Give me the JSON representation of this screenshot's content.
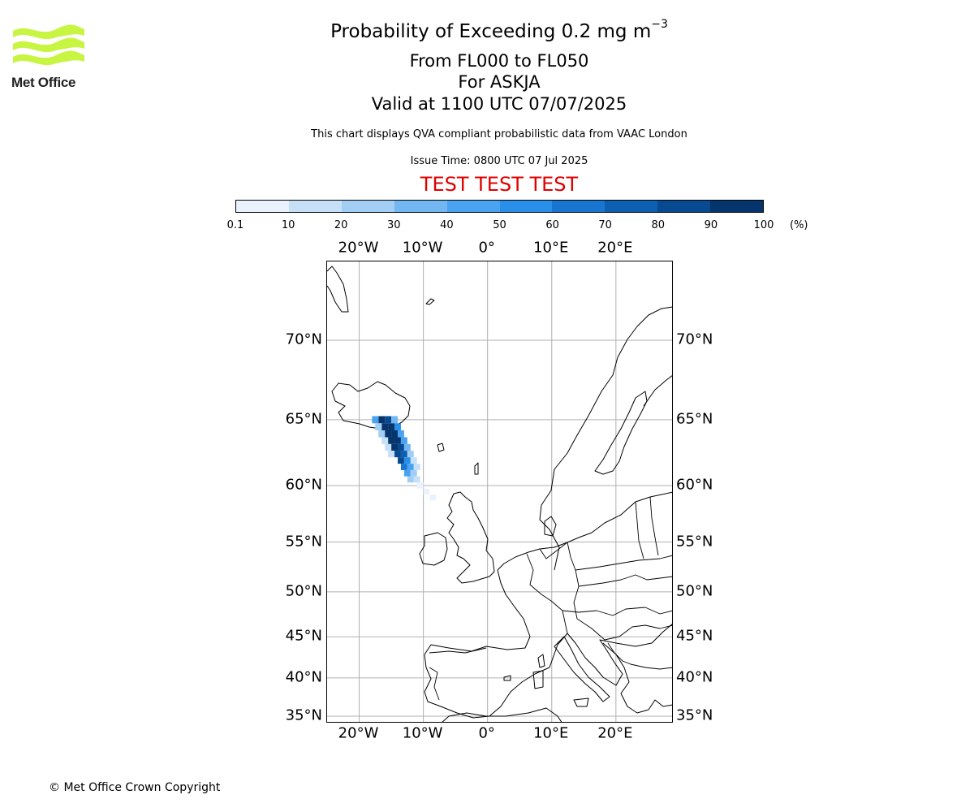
{
  "logo": {
    "text": "Met Office",
    "icon": "met-office-wave-logo",
    "color": "#c8f542"
  },
  "titles": {
    "line1_main": "Probability of Exceeding 0.2 mg m",
    "line1_sup": "−3",
    "line2": "From FL000 to FL050",
    "line3": "For ASKJA",
    "line4": "Valid at 1100 UTC 07/07/2025",
    "description": "This chart displays QVA compliant probabilistic data from VAAC London",
    "issue_time": "Issue Time: 0800 UTC 07 Jul 2025",
    "test_banner": "TEST TEST TEST"
  },
  "colorbar": {
    "labels": [
      "0.1",
      "10",
      "20",
      "30",
      "40",
      "50",
      "60",
      "70",
      "80",
      "90",
      "100"
    ],
    "unit": "(%)",
    "colors": [
      "#eaf3fd",
      "#c6e0f8",
      "#a2cdf5",
      "#72b6f2",
      "#4aa3f1",
      "#2a8fe8",
      "#1876d1",
      "#0d5fb2",
      "#074a91",
      "#05356c"
    ]
  },
  "axes": {
    "lon_labels": [
      "20°W",
      "10°W",
      "0°",
      "10°E",
      "20°E"
    ],
    "lat_labels": [
      "70°N",
      "65°N",
      "60°N",
      "55°N",
      "50°N",
      "45°N",
      "40°N",
      "35°N"
    ],
    "lon_range": [
      -25,
      29
    ],
    "lat_range": [
      34,
      74
    ],
    "grid": true,
    "projection": "mercator"
  },
  "probability_plume": {
    "source": "Askja",
    "cells": [
      [
        -16.5,
        65.0,
        95
      ],
      [
        -15.5,
        65.0,
        85
      ],
      [
        -17.5,
        65.0,
        40
      ],
      [
        -14.5,
        65.0,
        30
      ],
      [
        -16.0,
        64.5,
        95
      ],
      [
        -15.0,
        64.5,
        90
      ],
      [
        -14.0,
        64.5,
        50
      ],
      [
        -17.0,
        64.5,
        20
      ],
      [
        -15.5,
        64.0,
        95
      ],
      [
        -14.5,
        64.0,
        90
      ],
      [
        -13.5,
        64.0,
        45
      ],
      [
        -16.5,
        64.0,
        20
      ],
      [
        -15.0,
        63.5,
        95
      ],
      [
        -14.0,
        63.5,
        90
      ],
      [
        -13.0,
        63.5,
        40
      ],
      [
        -16.0,
        63.5,
        15
      ],
      [
        -14.5,
        63.0,
        90
      ],
      [
        -13.5,
        63.0,
        85
      ],
      [
        -12.5,
        63.0,
        30
      ],
      [
        -15.5,
        63.0,
        10
      ],
      [
        -14.0,
        62.5,
        85
      ],
      [
        -13.0,
        62.5,
        70
      ],
      [
        -12.0,
        62.5,
        25
      ],
      [
        -15.0,
        62.5,
        10
      ],
      [
        -13.5,
        62.0,
        80
      ],
      [
        -12.5,
        62.0,
        55
      ],
      [
        -11.5,
        62.0,
        15
      ],
      [
        -13.0,
        61.5,
        65
      ],
      [
        -12.0,
        61.5,
        40
      ],
      [
        -11.0,
        61.5,
        10
      ],
      [
        -12.5,
        61.0,
        45
      ],
      [
        -11.5,
        61.0,
        25
      ],
      [
        -12.0,
        60.5,
        25
      ],
      [
        -11.0,
        60.5,
        12
      ],
      [
        -10.5,
        60.0,
        8
      ],
      [
        -9.5,
        59.5,
        5
      ],
      [
        -8.5,
        59.0,
        3
      ]
    ]
  },
  "copyright": "© Met Office Crown Copyright"
}
